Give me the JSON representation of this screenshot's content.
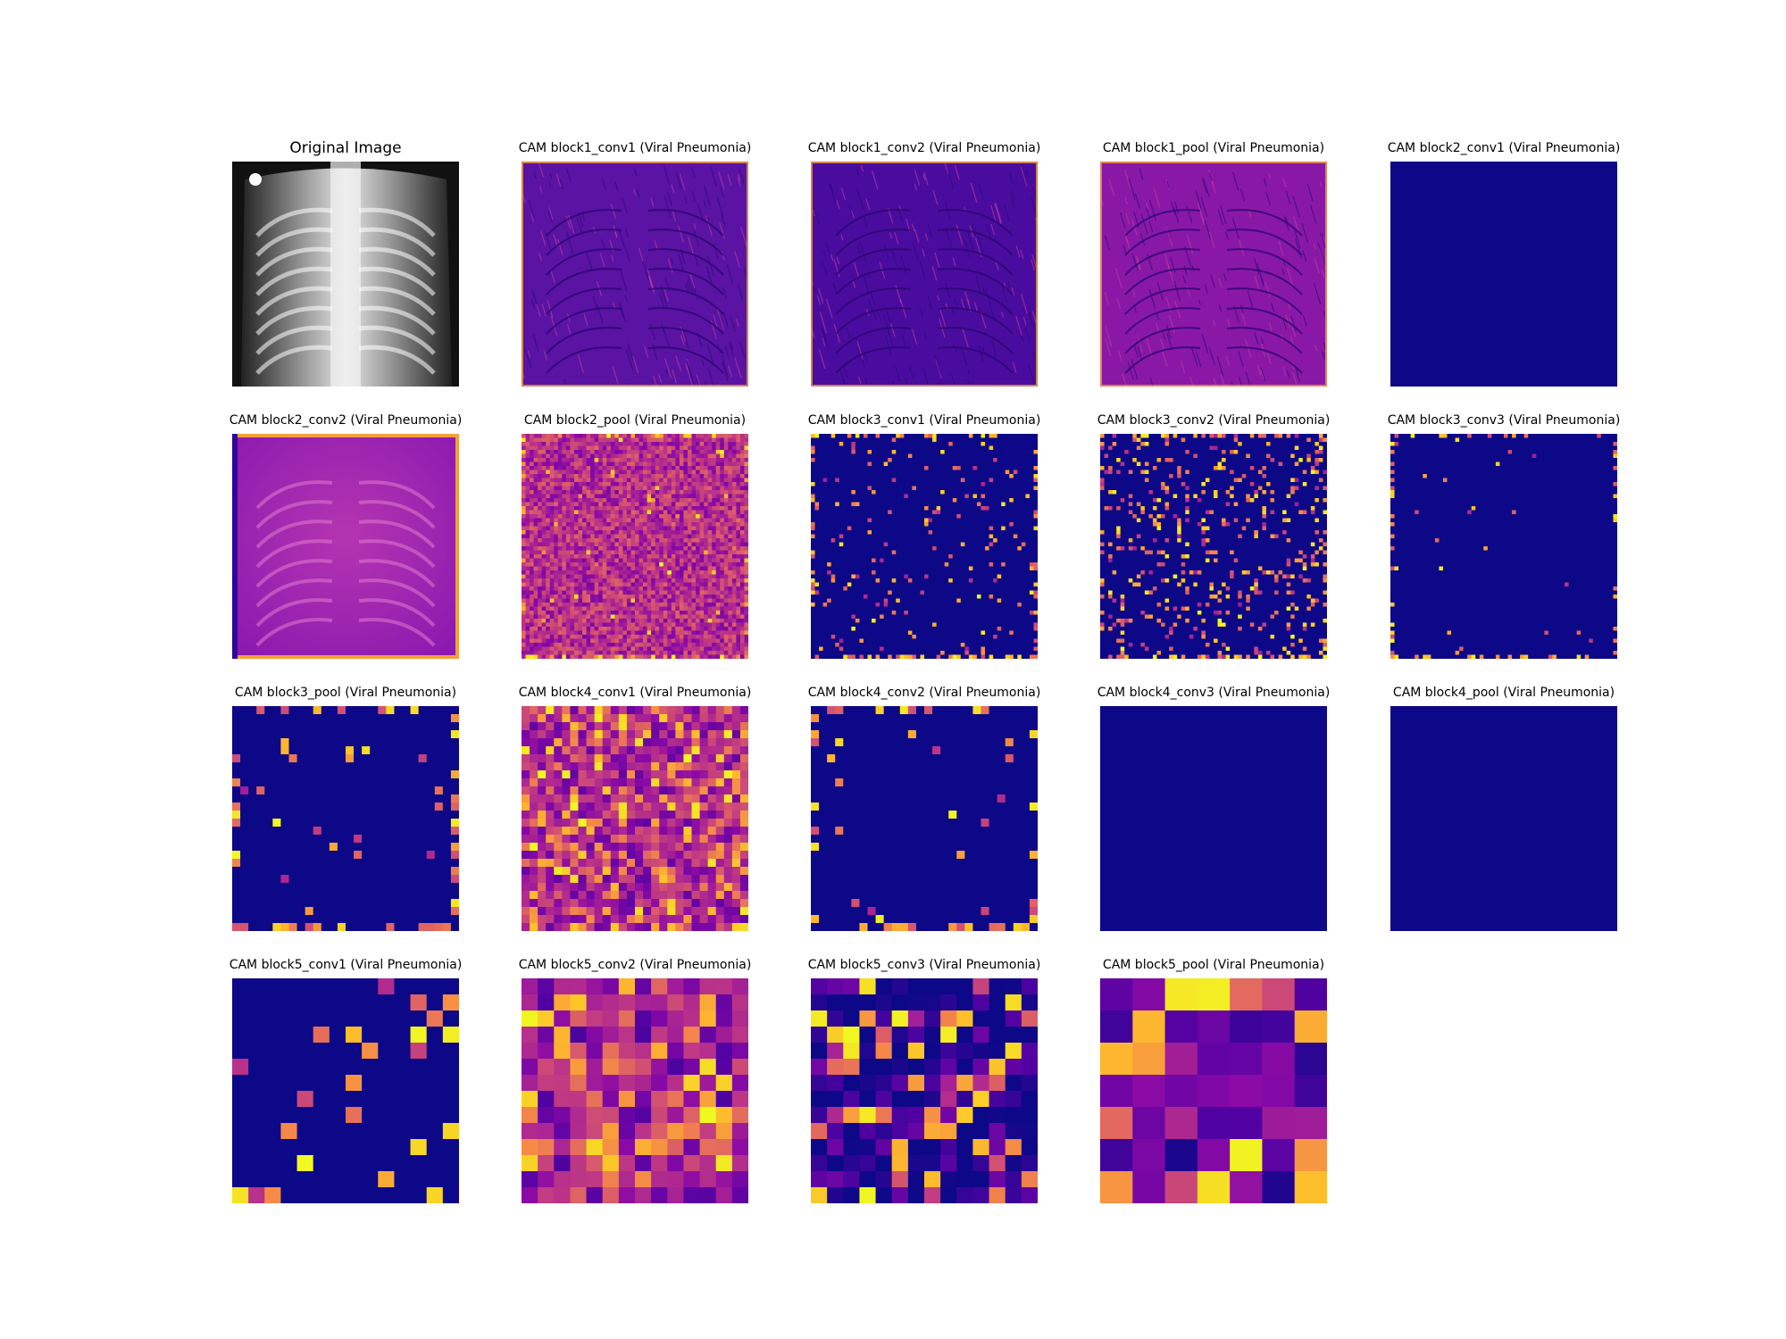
{
  "figure": {
    "panels": [
      {
        "title": "Original Image",
        "kind": "xray"
      },
      {
        "title": "CAM block1_conv1 (Viral Pneumonia)",
        "kind": "edge",
        "base": "#5a13a3"
      },
      {
        "title": "CAM block1_conv2 (Viral Pneumonia)",
        "kind": "edge",
        "base": "#4a0c9e"
      },
      {
        "title": "CAM block1_pool (Viral Pneumonia)",
        "kind": "edge",
        "base": "#8a18a6"
      },
      {
        "title": "CAM block2_conv1 (Viral Pneumonia)",
        "kind": "flat"
      },
      {
        "title": "CAM block2_conv2 (Viral Pneumonia)",
        "kind": "smooth"
      },
      {
        "title": "CAM block2_pool (Viral Pneumonia)",
        "kind": "grid",
        "n": 56,
        "level": 0.42,
        "spots": 0.02
      },
      {
        "title": "CAM block3_conv1 (Viral Pneumonia)",
        "kind": "grid",
        "n": 56,
        "level": 0.0,
        "spots": 0.05
      },
      {
        "title": "CAM block3_conv2 (Viral Pneumonia)",
        "kind": "grid",
        "n": 56,
        "level": 0.0,
        "spots": 0.14
      },
      {
        "title": "CAM block3_conv3 (Viral Pneumonia)",
        "kind": "grid",
        "n": 56,
        "level": 0.0,
        "spots": 0.01
      },
      {
        "title": "CAM block3_pool (Viral Pneumonia)",
        "kind": "grid",
        "n": 28,
        "level": 0.0,
        "spots": 0.03
      },
      {
        "title": "CAM block4_conv1 (Viral Pneumonia)",
        "kind": "grid",
        "n": 28,
        "level": 0.35,
        "spots": 0.35
      },
      {
        "title": "CAM block4_conv2 (Viral Pneumonia)",
        "kind": "grid",
        "n": 28,
        "level": 0.0,
        "spots": 0.03
      },
      {
        "title": "CAM block4_conv3 (Viral Pneumonia)",
        "kind": "flat"
      },
      {
        "title": "CAM block4_pool (Viral Pneumonia)",
        "kind": "flat"
      },
      {
        "title": "CAM block5_conv1 (Viral Pneumonia)",
        "kind": "grid",
        "n": 14,
        "level": 0.0,
        "spots": 0.12
      },
      {
        "title": "CAM block5_conv2 (Viral Pneumonia)",
        "kind": "grid",
        "n": 14,
        "level": 0.3,
        "spots": 0.4
      },
      {
        "title": "CAM block5_conv3 (Viral Pneumonia)",
        "kind": "grid",
        "n": 14,
        "level": 0.05,
        "spots": 0.25
      },
      {
        "title": "CAM block5_pool (Viral Pneumonia)",
        "kind": "grid",
        "n": 7,
        "level": 0.2,
        "spots": 0.5
      }
    ],
    "colormap": "plasma",
    "colors": {
      "low": "#0d0887",
      "mid": "#cc4778",
      "high": "#f0f921"
    }
  }
}
